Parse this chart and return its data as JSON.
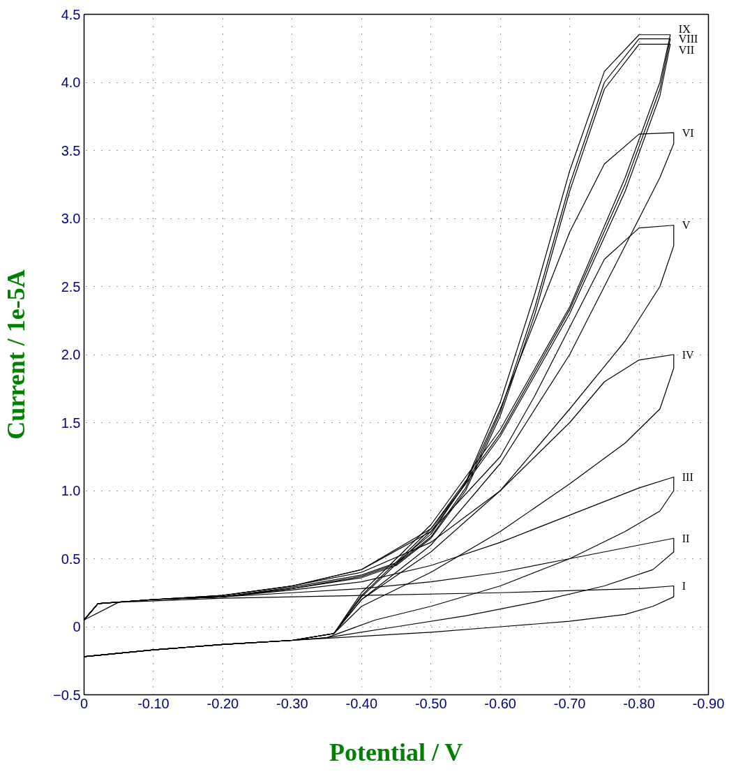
{
  "chart_data": {
    "type": "line",
    "xlabel": "Potential / V",
    "ylabel": "Current / 1e-5A",
    "xlim": [
      0,
      -0.9
    ],
    "ylim": [
      -0.5,
      4.5
    ],
    "xticks": [
      0,
      {
        "value": -0.1,
        "label": "-0.10"
      },
      {
        "value": -0.2,
        "label": "-0.20"
      },
      {
        "value": -0.3,
        "label": "-0.30"
      },
      {
        "value": -0.4,
        "label": "-0.40"
      },
      {
        "value": -0.5,
        "label": "-0.50"
      },
      {
        "value": -0.6,
        "label": "-0.60"
      },
      {
        "value": -0.7,
        "label": "-0.70"
      },
      {
        "value": -0.8,
        "label": "-0.80"
      },
      {
        "value": -0.9,
        "label": "-0.90"
      }
    ],
    "yticks": [
      -0.5,
      0,
      0.5,
      {
        "value": 1,
        "label": "1.0"
      },
      1.5,
      {
        "value": 2,
        "label": "2.0"
      },
      2.5,
      {
        "value": 3,
        "label": "3.0"
      },
      3.5,
      {
        "value": 4,
        "label": "4.0"
      },
      4.5
    ],
    "grid": true,
    "line_style": "solid",
    "series": [
      {
        "name": "I",
        "color": "#000000",
        "x": [
          0,
          -0.1,
          -0.2,
          -0.3,
          -0.4,
          -0.5,
          -0.6,
          -0.7,
          -0.78,
          -0.82,
          -0.85,
          -0.85,
          -0.8,
          -0.6,
          -0.4,
          -0.2,
          -0.05,
          0
        ],
        "values": [
          -0.22,
          -0.17,
          -0.13,
          -0.1,
          -0.07,
          -0.04,
          0.0,
          0.04,
          0.09,
          0.15,
          0.22,
          0.3,
          0.28,
          0.25,
          0.23,
          0.21,
          0.18,
          0.05
        ]
      },
      {
        "name": "II",
        "color": "#000000",
        "x": [
          0,
          -0.1,
          -0.2,
          -0.3,
          -0.35,
          -0.45,
          -0.55,
          -0.65,
          -0.75,
          -0.82,
          -0.85,
          -0.85,
          -0.8,
          -0.7,
          -0.6,
          -0.5,
          -0.4,
          -0.3,
          -0.2,
          -0.1,
          -0.02,
          0
        ],
        "values": [
          -0.22,
          -0.17,
          -0.13,
          -0.1,
          -0.08,
          0.0,
          0.08,
          0.18,
          0.3,
          0.42,
          0.55,
          0.65,
          0.6,
          0.5,
          0.4,
          0.33,
          0.28,
          0.25,
          0.22,
          0.2,
          0.17,
          0.05
        ]
      },
      {
        "name": "III",
        "color": "#000000",
        "x": [
          0,
          -0.1,
          -0.2,
          -0.3,
          -0.35,
          -0.42,
          -0.5,
          -0.6,
          -0.7,
          -0.78,
          -0.83,
          -0.85,
          -0.85,
          -0.8,
          -0.7,
          -0.6,
          -0.5,
          -0.4,
          -0.3,
          -0.2,
          -0.1,
          -0.02,
          0
        ],
        "values": [
          -0.22,
          -0.17,
          -0.13,
          -0.1,
          -0.08,
          0.05,
          0.15,
          0.3,
          0.5,
          0.7,
          0.85,
          1.0,
          1.1,
          1.02,
          0.82,
          0.62,
          0.45,
          0.33,
          0.27,
          0.22,
          0.2,
          0.17,
          0.05
        ]
      },
      {
        "name": "IV",
        "color": "#000000",
        "x": [
          0,
          -0.1,
          -0.2,
          -0.3,
          -0.36,
          -0.4,
          -0.5,
          -0.6,
          -0.7,
          -0.78,
          -0.83,
          -0.85,
          -0.85,
          -0.8,
          -0.75,
          -0.7,
          -0.6,
          -0.5,
          -0.4,
          -0.3,
          -0.2,
          -0.1,
          -0.02,
          0
        ],
        "values": [
          -0.22,
          -0.17,
          -0.13,
          -0.1,
          -0.05,
          0.15,
          0.4,
          0.7,
          1.05,
          1.35,
          1.6,
          1.9,
          2.0,
          1.96,
          1.8,
          1.5,
          1.0,
          0.62,
          0.4,
          0.3,
          0.23,
          0.2,
          0.17,
          0.05
        ]
      },
      {
        "name": "V",
        "color": "#000000",
        "x": [
          0,
          -0.1,
          -0.2,
          -0.3,
          -0.36,
          -0.4,
          -0.5,
          -0.6,
          -0.7,
          -0.78,
          -0.83,
          -0.85,
          -0.85,
          -0.8,
          -0.75,
          -0.7,
          -0.65,
          -0.6,
          -0.5,
          -0.4,
          -0.3,
          -0.2,
          -0.1,
          -0.02,
          0
        ],
        "values": [
          -0.22,
          -0.17,
          -0.13,
          -0.1,
          -0.05,
          0.2,
          0.55,
          1.0,
          1.6,
          2.1,
          2.5,
          2.8,
          2.95,
          2.93,
          2.7,
          2.2,
          1.7,
          1.25,
          0.7,
          0.42,
          0.3,
          0.23,
          0.2,
          0.17,
          0.05
        ]
      },
      {
        "name": "VI",
        "color": "#000000",
        "x": [
          0,
          -0.1,
          -0.2,
          -0.3,
          -0.36,
          -0.4,
          -0.5,
          -0.6,
          -0.7,
          -0.78,
          -0.83,
          -0.85,
          -0.85,
          -0.8,
          -0.75,
          -0.7,
          -0.65,
          -0.6,
          -0.55,
          -0.5,
          -0.4,
          -0.3,
          -0.2,
          -0.1,
          -0.02,
          0
        ],
        "values": [
          -0.22,
          -0.17,
          -0.13,
          -0.1,
          -0.05,
          0.2,
          0.6,
          1.2,
          2.0,
          2.8,
          3.3,
          3.55,
          3.63,
          3.62,
          3.4,
          2.9,
          2.25,
          1.6,
          1.05,
          0.72,
          0.42,
          0.3,
          0.23,
          0.2,
          0.17,
          0.05
        ]
      },
      {
        "color": "#000000",
        "x": [
          0,
          -0.1,
          -0.2,
          -0.3,
          -0.36,
          -0.4,
          -0.5,
          -0.6,
          -0.7,
          -0.78,
          -0.83,
          -0.845,
          -0.8,
          -0.75,
          -0.7,
          -0.65,
          -0.6,
          -0.55,
          -0.5,
          -0.45,
          -0.4,
          -0.3,
          -0.2,
          -0.1,
          -0.02,
          0
        ],
        "name": "VII",
        "values": [
          -0.22,
          -0.17,
          -0.13,
          -0.1,
          -0.05,
          0.22,
          0.7,
          1.4,
          2.3,
          3.2,
          3.9,
          4.28,
          4.28,
          3.95,
          3.2,
          2.3,
          1.55,
          1.0,
          0.65,
          0.45,
          0.36,
          0.28,
          0.22,
          0.2,
          0.17,
          0.05
        ]
      },
      {
        "color": "#000000",
        "x": [
          0,
          -0.1,
          -0.2,
          -0.3,
          -0.36,
          -0.4,
          -0.5,
          -0.6,
          -0.7,
          -0.78,
          -0.83,
          -0.845,
          -0.8,
          -0.75,
          -0.7,
          -0.65,
          -0.6,
          -0.55,
          -0.5,
          -0.45,
          -0.4,
          -0.3,
          -0.2,
          -0.1,
          -0.02,
          0
        ],
        "name": "VIII",
        "values": [
          -0.22,
          -0.17,
          -0.13,
          -0.1,
          -0.05,
          0.23,
          0.72,
          1.42,
          2.33,
          3.25,
          3.95,
          4.32,
          4.32,
          4.0,
          3.25,
          2.35,
          1.58,
          1.02,
          0.66,
          0.46,
          0.37,
          0.28,
          0.22,
          0.2,
          0.17,
          0.05
        ]
      },
      {
        "color": "#000000",
        "x": [
          0,
          -0.1,
          -0.2,
          -0.3,
          -0.36,
          -0.4,
          -0.5,
          -0.6,
          -0.7,
          -0.78,
          -0.83,
          -0.845,
          -0.8,
          -0.75,
          -0.7,
          -0.65,
          -0.6,
          -0.55,
          -0.5,
          -0.45,
          -0.4,
          -0.3,
          -0.2,
          -0.1,
          -0.02,
          0
        ],
        "name": "IX",
        "values": [
          -0.22,
          -0.17,
          -0.13,
          -0.1,
          -0.05,
          0.25,
          0.75,
          1.45,
          2.35,
          3.3,
          4.0,
          4.35,
          4.35,
          4.08,
          3.35,
          2.45,
          1.65,
          1.06,
          0.68,
          0.47,
          0.38,
          0.29,
          0.22,
          0.2,
          0.17,
          0.05
        ]
      }
    ]
  }
}
